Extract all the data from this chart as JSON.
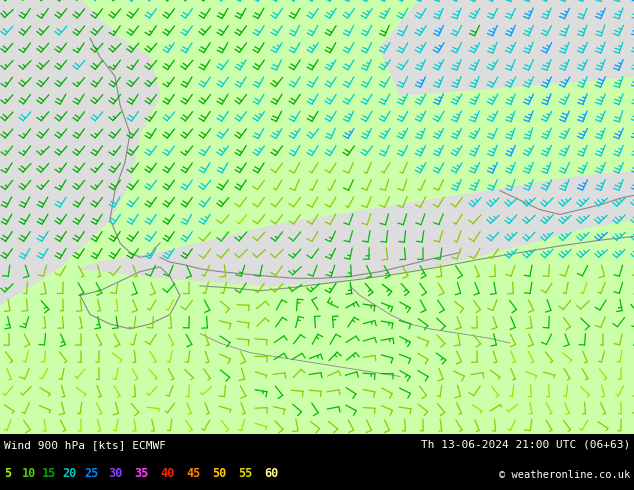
{
  "title_left": "Wind 900 hPa [kts] ECMWF",
  "title_right": "Th 13-06-2024 21:00 UTC (06+63)",
  "copyright": "© weatheronline.co.uk",
  "legend_values": [
    5,
    10,
    15,
    20,
    25,
    30,
    35,
    40,
    45,
    50,
    55,
    60
  ],
  "legend_colors": [
    "#aaee00",
    "#55cc00",
    "#00aa00",
    "#00cccc",
    "#0088ff",
    "#8844ff",
    "#ff44ff",
    "#ff2200",
    "#ff8800",
    "#ffcc00",
    "#dddd00",
    "#ffff88"
  ],
  "fig_bg": "#000000",
  "bottom_bar_color": "#000000",
  "fig_width": 6.34,
  "fig_height": 4.9,
  "dpi": 100,
  "map_bg_land": "#ccffaa",
  "map_bg_sea": "#dddddd",
  "coastline_color": "#888888"
}
